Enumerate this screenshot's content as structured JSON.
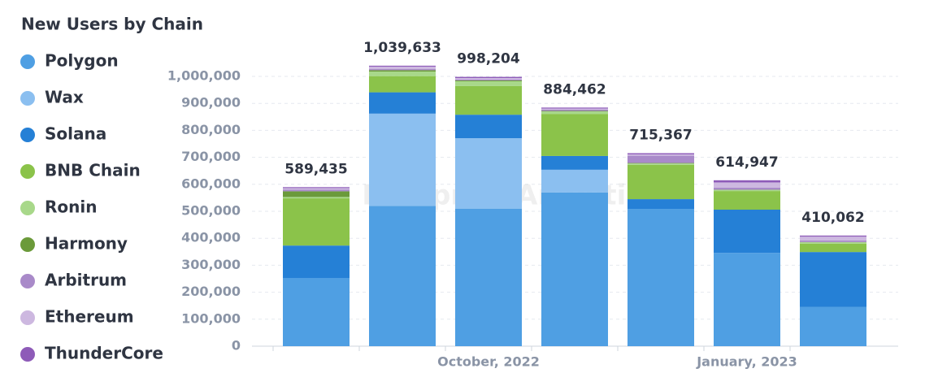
{
  "chart_data": {
    "type": "stacked_bar",
    "title": "New Users by Chain",
    "watermark": "Footprint Analytics",
    "categories": [
      null,
      null,
      "October, 2022",
      null,
      null,
      "January, 2023",
      null
    ],
    "series": [
      {
        "name": "Polygon",
        "color": "#4f9fe3",
        "values": [
          253000,
          520000,
          510000,
          570000,
          509000,
          346000,
          145000
        ]
      },
      {
        "name": "Wax",
        "color": "#8bbff0",
        "values": [
          0,
          342000,
          261000,
          84000,
          0,
          0,
          0
        ]
      },
      {
        "name": "Solana",
        "color": "#2580d6",
        "values": [
          120000,
          79000,
          87000,
          51000,
          36000,
          160000,
          204000
        ]
      },
      {
        "name": "BNB Chain",
        "color": "#8bc34a",
        "values": [
          175000,
          60000,
          106000,
          156000,
          127000,
          69000,
          31000
        ]
      },
      {
        "name": "Ronin",
        "color": "#a8d88a",
        "values": [
          5000,
          17000,
          18000,
          9000,
          5000,
          4000,
          5000
        ]
      },
      {
        "name": "Harmony",
        "color": "#6b9a3a",
        "values": [
          21000,
          5000,
          3000,
          2000,
          2000,
          1000,
          1000
        ]
      },
      {
        "name": "Arbitrum",
        "color": "#a98ac9",
        "values": [
          6000,
          5000,
          3000,
          5000,
          27000,
          8000,
          6000
        ]
      },
      {
        "name": "Ethereum",
        "color": "#cdb8e0",
        "values": [
          6000,
          8000,
          6000,
          4000,
          5000,
          19000,
          14000
        ]
      },
      {
        "name": "ThunderCore",
        "color": "#8e5bb8",
        "values": [
          3435,
          3633,
          4204,
          3462,
          4367,
          7947,
          4062
        ]
      }
    ],
    "totals": [
      589435,
      1039633,
      998204,
      884462,
      715367,
      614947,
      410062
    ],
    "total_labels": [
      "589,435",
      "1,039,633",
      "998,204",
      "884,462",
      "715,367",
      "614,947",
      "410,062"
    ],
    "ylim": [
      0,
      1000000
    ],
    "yticks": [
      0,
      {
        "value": 100000,
        "label": "100,000"
      },
      {
        "value": 200000,
        "label": "200,000"
      },
      {
        "value": 300000,
        "label": "300,000"
      },
      {
        "value": 400000,
        "label": "400,000"
      },
      {
        "value": 500000,
        "label": "500,000"
      },
      {
        "value": 600000,
        "label": "600,000"
      },
      {
        "value": 700000,
        "label": "700,000"
      },
      {
        "value": 800000,
        "label": "800,000"
      },
      {
        "value": 900000,
        "label": "900,000"
      },
      {
        "value": 1000000,
        "label": "1,000,000"
      }
    ],
    "grid": true
  }
}
